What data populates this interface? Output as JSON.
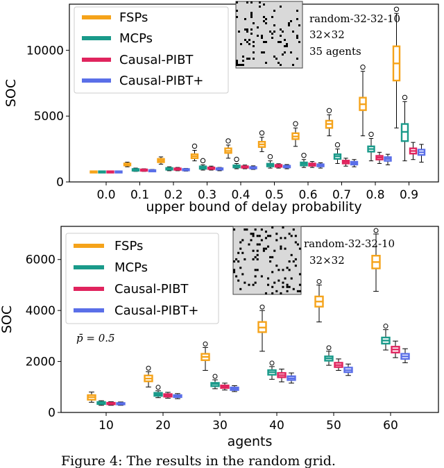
{
  "caption": "Figure 4: The results in the random grid.",
  "colors": {
    "FSPs": "#f5a31a",
    "MCPs": "#1a9a8a",
    "Causal-PIBT": "#e0245e",
    "Causal-PIBT+": "#5a6fe8"
  },
  "chart_data": [
    {
      "type": "box",
      "title": "",
      "xlabel": "upper bound of delay probability",
      "ylabel": "SOC",
      "categories": [
        "0.0",
        "0.1",
        "0.2",
        "0.3",
        "0.4",
        "0.5",
        "0.6",
        "0.7",
        "0.8",
        "0.9"
      ],
      "ylim": [
        0,
        13500
      ],
      "yticks": [
        "0",
        "5000",
        "10000"
      ],
      "legend": [
        "FSPs",
        "MCPs",
        "Causal-PIBT",
        "Causal-PIBT+"
      ],
      "map_info": [
        "random-32-32-10",
        "32×32",
        "35 agents"
      ],
      "series": [
        {
          "name": "FSPs",
          "boxes": [
            [
              760,
              770,
              790,
              810,
              830
            ],
            [
              1150,
              1250,
              1320,
              1400,
              1500
            ],
            [
              1350,
              1500,
              1620,
              1750,
              1900
            ],
            [
              1600,
              1800,
              1950,
              2100,
              2400
            ],
            [
              1800,
              2200,
              2350,
              2550,
              2800
            ],
            [
              2300,
              2650,
              2850,
              3050,
              3400
            ],
            [
              2700,
              3250,
              3450,
              3700,
              4100
            ],
            [
              3500,
              4100,
              4400,
              4650,
              5100
            ],
            [
              3500,
              5450,
              5900,
              6400,
              8400
            ],
            [
              4100,
              7700,
              9000,
              10300,
              12800
            ]
          ]
        },
        {
          "name": "MCPs",
          "boxes": [
            [
              760,
              770,
              790,
              810,
              830
            ],
            [
              800,
              850,
              920,
              980,
              1050
            ],
            [
              850,
              930,
              1000,
              1060,
              1150
            ],
            [
              900,
              1000,
              1100,
              1180,
              1300
            ],
            [
              1000,
              1100,
              1180,
              1260,
              1400
            ],
            [
              1050,
              1180,
              1280,
              1380,
              1600
            ],
            [
              1100,
              1250,
              1380,
              1480,
              1700
            ],
            [
              1400,
              1750,
              1950,
              2100,
              2500
            ],
            [
              1600,
              2300,
              2500,
              2700,
              3300
            ],
            [
              1600,
              3100,
              3800,
              4400,
              6100
            ]
          ]
        },
        {
          "name": "Causal-PIBT",
          "boxes": [
            [
              760,
              770,
              790,
              810,
              830
            ],
            [
              800,
              850,
              900,
              950,
              1000
            ],
            [
              850,
              920,
              980,
              1030,
              1100
            ],
            [
              900,
              980,
              1050,
              1100,
              1200
            ],
            [
              1000,
              1080,
              1130,
              1190,
              1280
            ],
            [
              1050,
              1150,
              1220,
              1290,
              1380
            ],
            [
              1100,
              1230,
              1320,
              1400,
              1550
            ],
            [
              1200,
              1400,
              1520,
              1620,
              1800
            ],
            [
              1400,
              1700,
              1850,
              1980,
              2250
            ],
            [
              1700,
              2150,
              2350,
              2550,
              3000
            ]
          ]
        },
        {
          "name": "Causal-PIBT+",
          "boxes": [
            [
              760,
              770,
              790,
              810,
              830
            ],
            [
              780,
              820,
              860,
              900,
              950
            ],
            [
              820,
              880,
              930,
              980,
              1030
            ],
            [
              850,
              930,
              990,
              1040,
              1100
            ],
            [
              950,
              1020,
              1080,
              1130,
              1220
            ],
            [
              1000,
              1100,
              1170,
              1230,
              1320
            ],
            [
              1050,
              1180,
              1260,
              1340,
              1450
            ],
            [
              1150,
              1320,
              1430,
              1530,
              1700
            ],
            [
              1300,
              1600,
              1750,
              1880,
              2100
            ],
            [
              1500,
              2050,
              2250,
              2450,
              2850
            ]
          ]
        }
      ]
    },
    {
      "type": "box",
      "title": "",
      "xlabel": "agents",
      "ylabel": "SOC",
      "categories": [
        "10",
        "20",
        "30",
        "40",
        "50",
        "60"
      ],
      "ylim": [
        0,
        7300
      ],
      "yticks": [
        "0",
        "2000",
        "4000",
        "6000"
      ],
      "legend": [
        "FSPs",
        "MCPs",
        "Causal-PIBT",
        "Causal-PIBT+"
      ],
      "map_info": [
        "random-32-32-10",
        "32×32"
      ],
      "annotation": "p̄ = 0.5",
      "series": [
        {
          "name": "FSPs",
          "boxes": [
            [
              400,
              500,
              600,
              680,
              800
            ],
            [
              1000,
              1220,
              1330,
              1450,
              1600
            ],
            [
              1650,
              2050,
              2180,
              2300,
              2550
            ],
            [
              2400,
              3150,
              3330,
              3550,
              4000
            ],
            [
              3550,
              4150,
              4350,
              4550,
              5000
            ],
            [
              4750,
              5650,
              5900,
              6150,
              7000
            ]
          ]
        },
        {
          "name": "MCPs",
          "boxes": [
            [
              280,
              330,
              370,
              410,
              460
            ],
            [
              580,
              650,
              710,
              770,
              850
            ],
            [
              930,
              1030,
              1110,
              1160,
              1280
            ],
            [
              1300,
              1480,
              1580,
              1660,
              1800
            ],
            [
              1850,
              2030,
              2120,
              2200,
              2400
            ],
            [
              2450,
              2700,
              2820,
              2940,
              3250
            ]
          ]
        },
        {
          "name": "Causal-PIBT",
          "boxes": [
            [
              280,
              320,
              350,
              380,
              420
            ],
            [
              560,
              620,
              670,
              720,
              790
            ],
            [
              880,
              960,
              1010,
              1060,
              1150
            ],
            [
              1200,
              1380,
              1460,
              1550,
              1700
            ],
            [
              1650,
              1780,
              1860,
              1950,
              2100
            ],
            [
              2150,
              2350,
              2470,
              2580,
              2800
            ]
          ]
        },
        {
          "name": "Causal-PIBT+",
          "boxes": [
            [
              280,
              320,
              345,
              370,
              410
            ],
            [
              540,
              600,
              640,
              680,
              740
            ],
            [
              820,
              880,
              930,
              980,
              1050
            ],
            [
              1150,
              1270,
              1340,
              1420,
              1550
            ],
            [
              1450,
              1580,
              1660,
              1760,
              1900
            ],
            [
              1950,
              2100,
              2200,
              2300,
              2500
            ]
          ]
        }
      ]
    }
  ]
}
